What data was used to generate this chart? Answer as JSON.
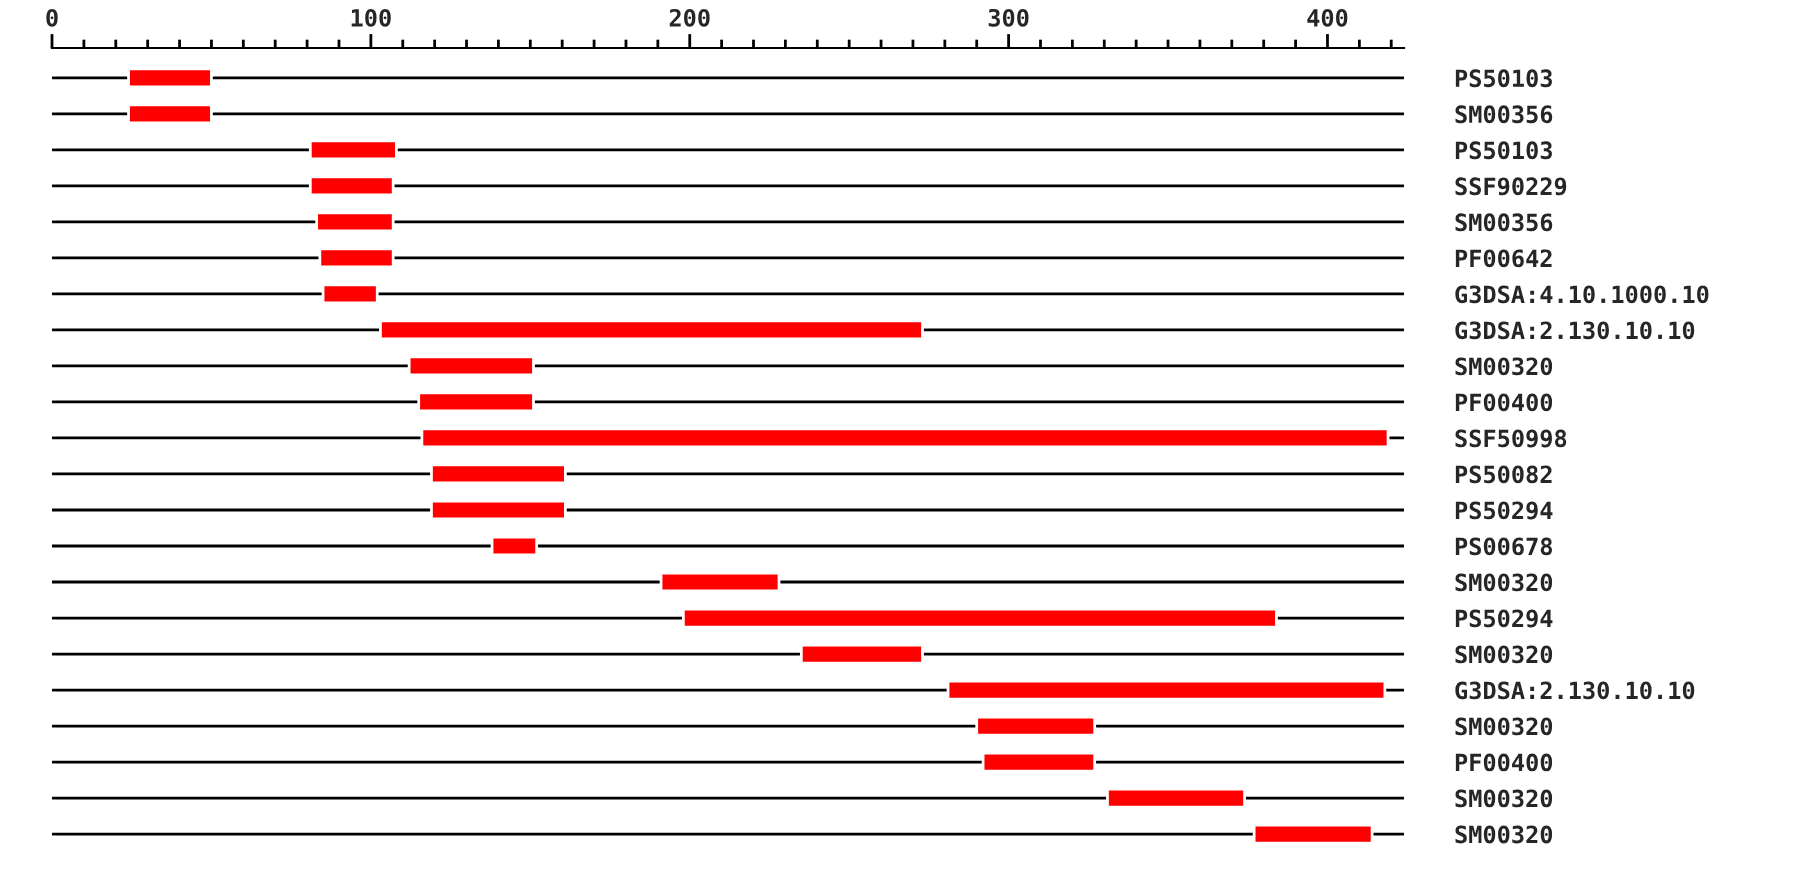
{
  "chart_data": {
    "type": "bar",
    "orientation": "horizontal",
    "color": "#ff0000",
    "grid": "y",
    "legend": false,
    "categories": [
      "PS50103",
      "SM00356",
      "PS50103",
      "SSF90229",
      "SM00356",
      "PF00642",
      "G3DSA:4.10.1000.10",
      "G3DSA:2.130.10.10",
      "SM00320",
      "PF00400",
      "SSF50998",
      "PS50082",
      "PS50294",
      "PS00678",
      "SM00320",
      "PS50294",
      "SM00320",
      "G3DSA:2.130.10.10",
      "SM00320",
      "PF00400",
      "SM00320",
      "SM00320"
    ],
    "base": [
      24,
      24,
      81,
      81,
      83,
      84,
      85,
      103,
      112,
      115,
      116,
      119,
      119,
      138,
      191,
      198,
      235,
      281,
      290,
      292,
      331,
      377
    ],
    "values": [
      26,
      26,
      27,
      26,
      24,
      23,
      17,
      170,
      39,
      36,
      303,
      42,
      42,
      14,
      37,
      186,
      38,
      137,
      37,
      35,
      43,
      37
    ],
    "xlim": [
      0,
      424
    ],
    "xticks": [
      0,
      {
        "value": 10,
        "label": null
      },
      {
        "value": 20,
        "label": null
      },
      {
        "value": 30,
        "label": null
      },
      {
        "value": 40,
        "label": null
      },
      {
        "value": 50,
        "label": null
      },
      {
        "value": 60,
        "label": null
      },
      {
        "value": 70,
        "label": null
      },
      {
        "value": 80,
        "label": null
      },
      {
        "value": 90,
        "label": null
      },
      100,
      {
        "value": 110,
        "label": null
      },
      {
        "value": 120,
        "label": null
      },
      {
        "value": 130,
        "label": null
      },
      {
        "value": 140,
        "label": null
      },
      {
        "value": 150,
        "label": null
      },
      {
        "value": 160,
        "label": null
      },
      {
        "value": 170,
        "label": null
      },
      {
        "value": 180,
        "label": null
      },
      {
        "value": 190,
        "label": null
      },
      200,
      {
        "value": 210,
        "label": null
      },
      {
        "value": 220,
        "label": null
      },
      {
        "value": 230,
        "label": null
      },
      {
        "value": 240,
        "label": null
      },
      {
        "value": 250,
        "label": null
      },
      {
        "value": 260,
        "label": null
      },
      {
        "value": 270,
        "label": null
      },
      {
        "value": 280,
        "label": null
      },
      {
        "value": 290,
        "label": null
      },
      300,
      {
        "value": 310,
        "label": null
      },
      {
        "value": 320,
        "label": null
      },
      {
        "value": 330,
        "label": null
      },
      {
        "value": 340,
        "label": null
      },
      {
        "value": 350,
        "label": null
      },
      {
        "value": 360,
        "label": null
      },
      {
        "value": 370,
        "label": null
      },
      {
        "value": 380,
        "label": null
      },
      {
        "value": 390,
        "label": null
      },
      400,
      {
        "value": 410,
        "label": null
      },
      {
        "value": 420,
        "label": null
      }
    ]
  }
}
